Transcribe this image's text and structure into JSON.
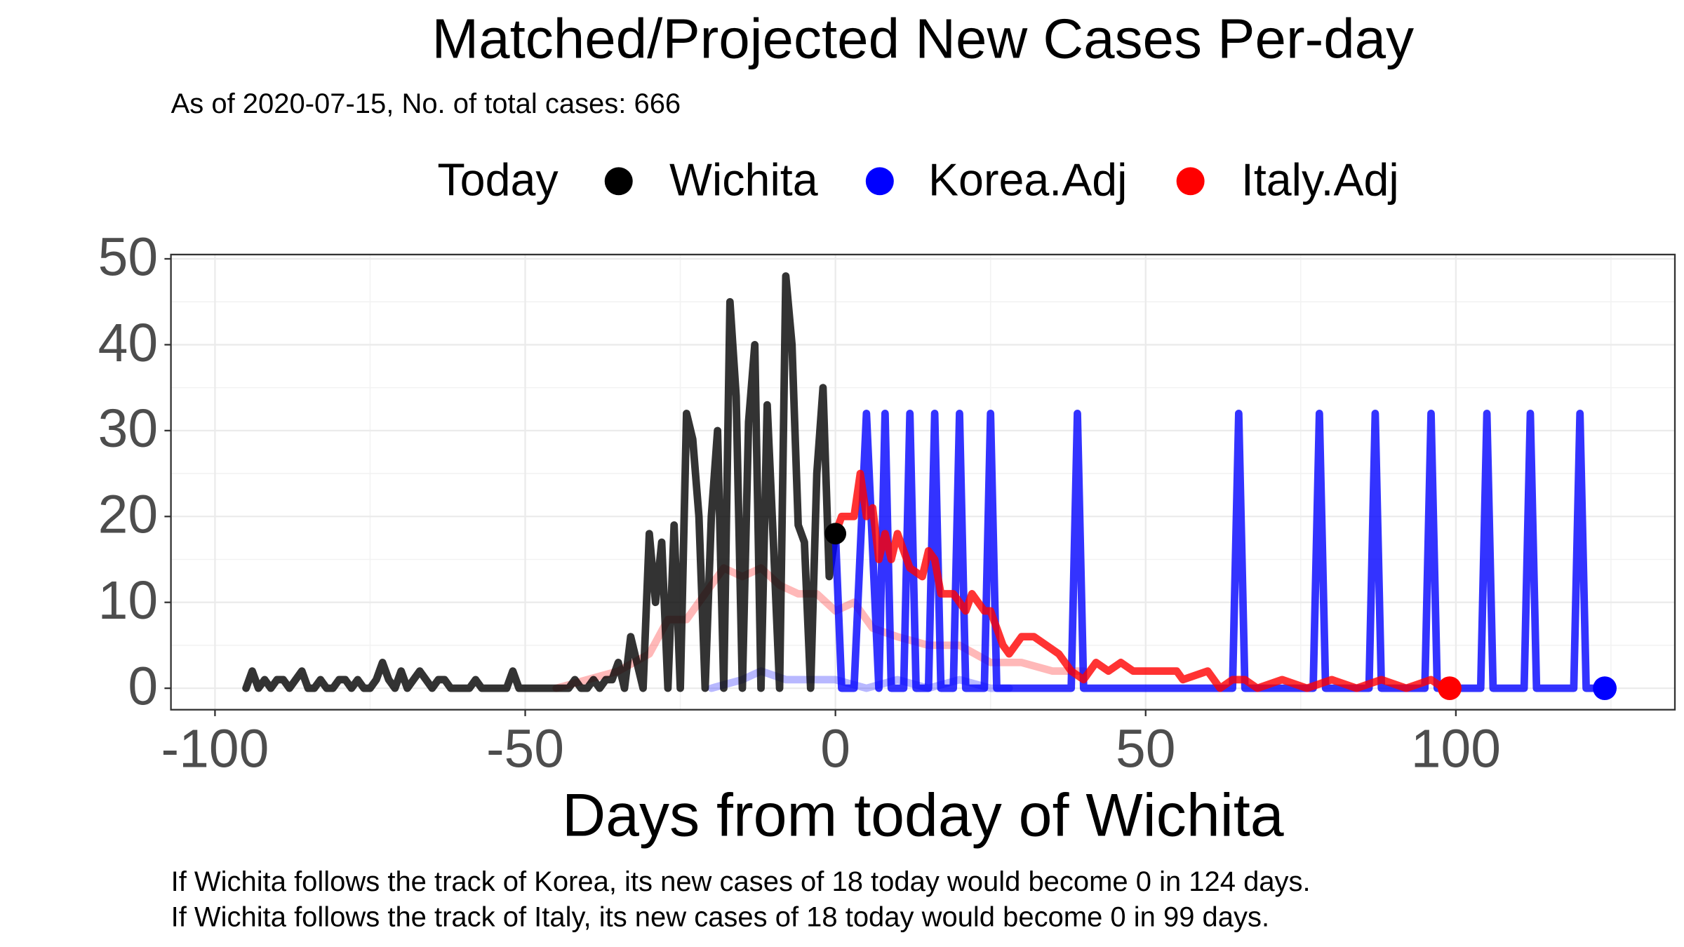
{
  "chart_data": {
    "type": "line",
    "title": "Matched/Projected New Cases Per-day",
    "subtitle": "As of 2020-07-15, No. of total cases: 666",
    "legend_title": "Today",
    "x_label": "Days from today of Wichita",
    "notes": [
      "If Wichita follows the track of Korea, its new cases of 18 today would become 0 in 124 days.",
      "If Wichita follows the track of Italy, its new cases of 18 today would become 0 in 99 days."
    ],
    "xlim": [
      -107.1,
      135.3
    ],
    "ylim": [
      -2.5,
      50.5
    ],
    "xticks": [
      -100,
      -50,
      0,
      50,
      100
    ],
    "yticks": [
      0,
      10,
      20,
      30,
      40,
      50
    ],
    "xminor": [
      -75,
      -25,
      25,
      75,
      125
    ],
    "yminor": [
      5,
      15,
      25,
      35,
      45
    ],
    "grid": true,
    "legend": "top",
    "today": {
      "x": 0,
      "y": 18,
      "color": "#000000"
    },
    "series": [
      {
        "name": "Wichita",
        "color": "#000000",
        "x": [
          -95,
          -94,
          -93,
          -92,
          -91,
          -90,
          -89,
          -88,
          -87,
          -86,
          -85,
          -84,
          -83,
          -82,
          -81,
          -80,
          -79,
          -78,
          -77,
          -76,
          -75,
          -74,
          -73,
          -72,
          -71,
          -70,
          -69,
          -68,
          -67,
          -66,
          -65,
          -64,
          -63,
          -62,
          -61,
          -60,
          -59,
          -58,
          -57,
          -56,
          -55,
          -54,
          -53,
          -52,
          -51,
          -50,
          -49,
          -48,
          -47,
          -46,
          -45,
          -44,
          -43,
          -42,
          -41,
          -40,
          -39,
          -38,
          -37,
          -36,
          -35,
          -34,
          -33,
          -32,
          -31,
          -30,
          -29,
          -28,
          -27,
          -26,
          -25,
          -24,
          -23,
          -22,
          -21,
          -20,
          -19,
          -18,
          -17,
          -16,
          -15,
          -14,
          -13,
          -12,
          -11,
          -10,
          -9,
          -8,
          -7,
          -6,
          -5,
          -4,
          -3,
          -2,
          -1,
          0
        ],
        "values": [
          0,
          2,
          0,
          1,
          0,
          1,
          1,
          0,
          1,
          2,
          0,
          0,
          1,
          0,
          0,
          1,
          1,
          0,
          1,
          0,
          0,
          1,
          3,
          1,
          0,
          2,
          0,
          1,
          2,
          1,
          0,
          1,
          1,
          0,
          0,
          0,
          0,
          1,
          0,
          0,
          0,
          0,
          0,
          2,
          0,
          0,
          0,
          0,
          0,
          0,
          0,
          0,
          0,
          1,
          0,
          0,
          1,
          0,
          1,
          1,
          3,
          0,
          6,
          3,
          0,
          18,
          10,
          17,
          0,
          19,
          0,
          32,
          29,
          20,
          0,
          20,
          30,
          0,
          45,
          34,
          0,
          31,
          40,
          0,
          33,
          17,
          0,
          48,
          40,
          19,
          17,
          0,
          25,
          35,
          13,
          18
        ]
      },
      {
        "name": "Korea.Adj",
        "color": "#0000ff",
        "x": [
          0,
          1,
          3,
          5,
          7,
          8,
          9,
          11,
          12,
          13,
          15,
          16,
          17,
          19,
          20,
          21,
          24,
          25,
          26,
          38,
          39,
          40,
          64,
          65,
          66,
          77,
          78,
          79,
          86,
          87,
          88,
          95,
          96,
          97,
          104,
          105,
          106,
          111,
          112,
          113,
          119,
          120,
          121,
          124
        ],
        "values": [
          18,
          0,
          0,
          32,
          0,
          32,
          0,
          0,
          32,
          0,
          0,
          32,
          0,
          0,
          32,
          0,
          0,
          32,
          0,
          0,
          32,
          0,
          0,
          32,
          0,
          0,
          32,
          0,
          0,
          32,
          0,
          0,
          32,
          0,
          0,
          32,
          0,
          0,
          32,
          0,
          0,
          32,
          0,
          0
        ],
        "matched": {
          "x": [
            -20,
            -15,
            -12,
            -8,
            -4,
            0,
            5,
            10,
            15,
            20,
            25,
            28
          ],
          "values": [
            0,
            1,
            2,
            1,
            1,
            1,
            0,
            1,
            0,
            1,
            0,
            0
          ]
        }
      },
      {
        "name": "Italy.Adj",
        "color": "#ff0000",
        "x": [
          0,
          1,
          3,
          4,
          5,
          6,
          7,
          8,
          9,
          10,
          12,
          14,
          15,
          16,
          17,
          19,
          21,
          22,
          24,
          25,
          26,
          27,
          28,
          30,
          32,
          34,
          36,
          38,
          40,
          42,
          44,
          46,
          48,
          55,
          56,
          60,
          62,
          64,
          66,
          68,
          72,
          76,
          80,
          84,
          88,
          92,
          96,
          98,
          99
        ],
        "values": [
          18,
          20,
          20,
          25,
          20,
          21,
          15,
          18,
          15,
          18,
          14,
          13,
          16,
          15,
          11,
          11,
          9,
          11,
          9,
          9,
          7,
          5,
          4,
          6,
          6,
          5,
          4,
          2,
          1,
          3,
          2,
          3,
          2,
          2,
          1,
          2,
          0,
          1,
          1,
          0,
          1,
          0,
          1,
          0,
          1,
          0,
          1,
          0,
          0
        ],
        "matched": {
          "x": [
            -45,
            -40,
            -35,
            -30,
            -27,
            -24,
            -21,
            -18,
            -15,
            -12,
            -9,
            -6,
            -3,
            0,
            3,
            6,
            10,
            15,
            20,
            25,
            30,
            35,
            40
          ],
          "values": [
            0,
            1,
            2,
            4,
            8,
            8,
            11,
            14,
            13,
            14,
            12,
            11,
            11,
            9,
            10,
            7,
            6,
            5,
            5,
            3,
            3,
            2,
            2
          ]
        }
      }
    ]
  }
}
